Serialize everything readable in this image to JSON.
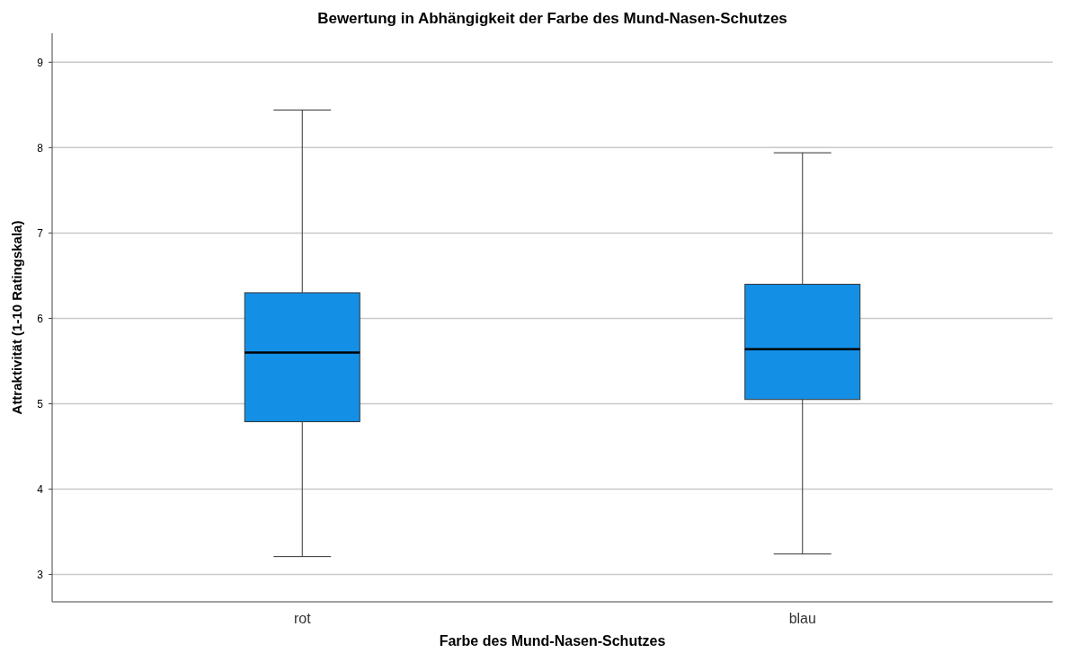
{
  "chart_data": {
    "type": "box",
    "title": "Bewertung in Abhängigkeit der Farbe des Mund-Nasen-Schutzes",
    "xlabel": "Farbe des Mund-Nasen-Schutzes",
    "ylabel": "Attraktivität (1-10 Ratingskala)",
    "categories": [
      "rot",
      "blau"
    ],
    "color": "#1390e6",
    "boxes": [
      {
        "low": 3.21,
        "q1": 4.79,
        "median": 5.6,
        "q3": 6.3,
        "high": 8.44
      },
      {
        "low": 3.24,
        "q1": 5.05,
        "median": 5.64,
        "q3": 6.4,
        "high": 7.94
      }
    ],
    "ylim": [
      2.68,
      9.34
    ],
    "yticks": [
      3,
      4,
      5,
      6,
      7,
      8,
      9
    ],
    "grid": "y"
  }
}
